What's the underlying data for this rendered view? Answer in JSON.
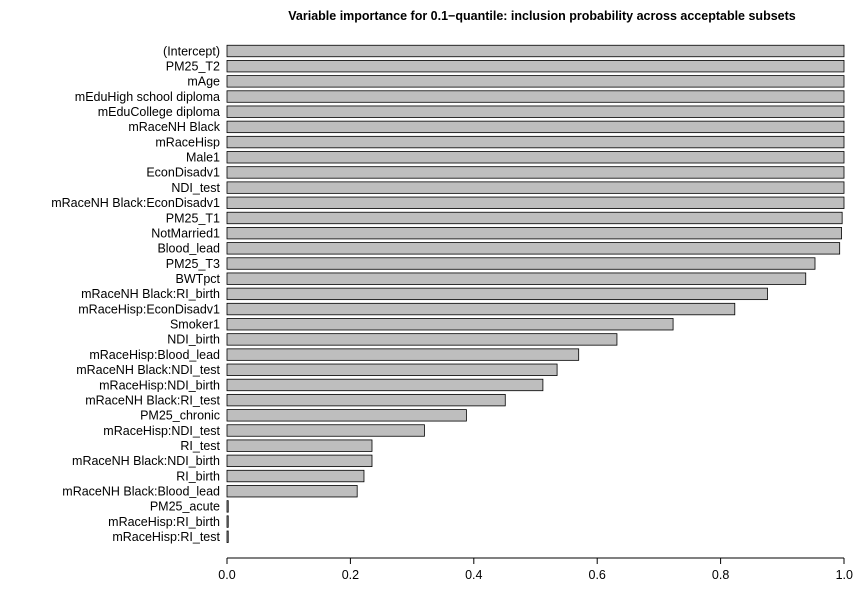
{
  "chart_data": {
    "type": "bar",
    "orientation": "horizontal",
    "title": "Variable importance for 0.1−quantile: inclusion probability across acceptable subsets",
    "xlabel": "",
    "ylabel": "",
    "xlim": [
      0,
      1
    ],
    "xticks": [
      "0.0",
      "0.2",
      "0.4",
      "0.6",
      "0.8",
      "1.0"
    ],
    "bar_color": "#bebebe",
    "grid": false,
    "categories": [
      "(Intercept)",
      "PM25_T2",
      "mAge",
      "mEduHigh school diploma",
      "mEduCollege diploma",
      "mRaceNH Black",
      "mRaceHisp",
      "Male1",
      "EconDisadv1",
      "NDI_test",
      "mRaceNH Black:EconDisadv1",
      "PM25_T1",
      "NotMarried1",
      "Blood_lead",
      "PM25_T3",
      "BWTpct",
      "mRaceNH Black:RI_birth",
      "mRaceHisp:EconDisadv1",
      "Smoker1",
      "NDI_birth",
      "mRaceHisp:Blood_lead",
      "mRaceNH Black:NDI_test",
      "mRaceHisp:NDI_birth",
      "mRaceNH Black:RI_test",
      "PM25_chronic",
      "mRaceHisp:NDI_test",
      "RI_test",
      "mRaceNH Black:NDI_birth",
      "RI_birth",
      "mRaceNH Black:Blood_lead",
      "PM25_acute",
      "mRaceHisp:RI_birth",
      "mRaceHisp:RI_test"
    ],
    "values": [
      1.0,
      1.0,
      1.0,
      1.0,
      1.0,
      1.0,
      1.0,
      1.0,
      1.0,
      1.0,
      1.0,
      0.997,
      0.996,
      0.993,
      0.953,
      0.938,
      0.876,
      0.823,
      0.723,
      0.632,
      0.57,
      0.535,
      0.512,
      0.451,
      0.388,
      0.32,
      0.235,
      0.235,
      0.222,
      0.211,
      0.002,
      0.002,
      0.002
    ]
  }
}
